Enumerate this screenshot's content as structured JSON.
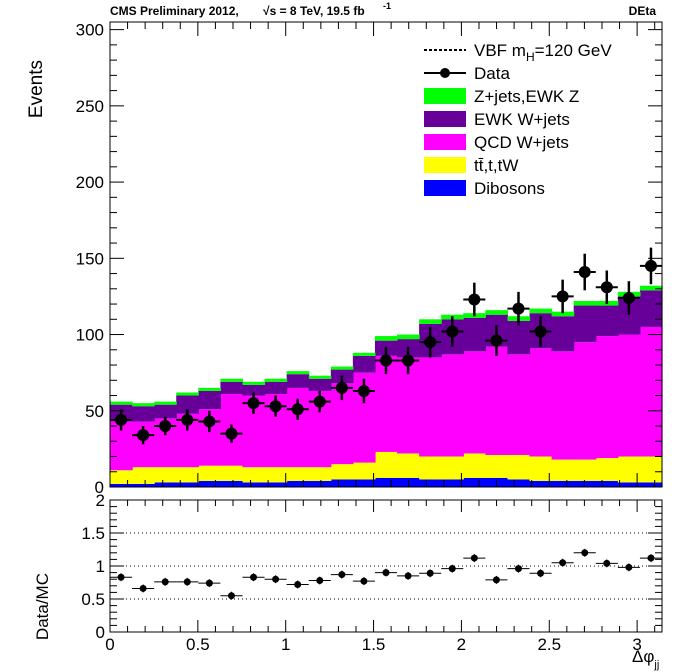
{
  "header": {
    "left_a": "CMS Preliminary 2012,",
    "left_b": "√s = 8 TeV, 19.5 fb",
    "left_sup": "-1",
    "right": "DEta"
  },
  "chart_data": [
    {
      "type": "bar",
      "stacked": true,
      "ylabel": "Events",
      "xlim": [
        0,
        3.1416
      ],
      "ylim": [
        0,
        305
      ],
      "yticks": [
        0,
        50,
        100,
        150,
        200,
        250,
        300
      ],
      "bin_width": 0.1257,
      "bins_x": [
        0.0628,
        0.1885,
        0.3142,
        0.4398,
        0.5655,
        0.6912,
        0.8168,
        0.9425,
        1.0681,
        1.1938,
        1.3195,
        1.4451,
        1.5708,
        1.6965,
        1.8221,
        1.9478,
        2.0735,
        2.1991,
        2.3248,
        2.4504,
        2.5761,
        2.7018,
        2.8274,
        2.9531,
        3.0788
      ],
      "legend": {
        "position": "top-right",
        "entries": [
          {
            "label": "VBF m",
            "sub": "H",
            "rest": "=120 GeV",
            "style": "dashed"
          },
          {
            "label": "Data",
            "style": "marker"
          },
          {
            "label": "Z+jets,EWK Z",
            "style": "fill",
            "color": "#00ff00"
          },
          {
            "label": "EWK W+jets",
            "style": "fill",
            "color": "#660099"
          },
          {
            "label": "QCD W+jets",
            "style": "fill",
            "color": "#ff00ff"
          },
          {
            "label": "tt̄,t,tW",
            "style": "fill",
            "color": "#ffff00"
          },
          {
            "label": "Dibosons",
            "style": "fill",
            "color": "#0000ff"
          }
        ]
      },
      "series": [
        {
          "name": "Dibosons",
          "color": "#0000ff",
          "values": [
            2,
            2,
            3,
            3,
            4,
            4,
            3,
            3,
            4,
            4,
            5,
            5,
            6,
            6,
            5,
            5,
            6,
            6,
            5,
            4,
            4,
            4,
            4,
            3,
            3
          ]
        },
        {
          "name": "tt̄,t,tW",
          "color": "#ffff00",
          "values": [
            9,
            11,
            10,
            10,
            10,
            10,
            10,
            10,
            9,
            9,
            10,
            11,
            17,
            16,
            15,
            15,
            16,
            15,
            16,
            16,
            14,
            14,
            15,
            17,
            17
          ]
        },
        {
          "name": "QCD W+jets",
          "color": "#ff00ff",
          "values": [
            32,
            30,
            32,
            35,
            37,
            47,
            47,
            48,
            52,
            50,
            53,
            59,
            63,
            63,
            65,
            67,
            67,
            71,
            66,
            71,
            71,
            77,
            80,
            80,
            85
          ]
        },
        {
          "name": "EWK W+jets",
          "color": "#660099",
          "values": [
            11,
            10,
            9,
            12,
            12,
            8,
            7,
            8,
            9,
            8,
            9,
            11,
            10,
            12,
            22,
            23,
            22,
            21,
            22,
            23,
            23,
            24,
            20,
            25,
            24
          ]
        },
        {
          "name": "Z+jets,EWK Z",
          "color": "#00ff00",
          "values": [
            2,
            2,
            2,
            2,
            2,
            2,
            2,
            2,
            2,
            2,
            2,
            2,
            3,
            3,
            3,
            3,
            3,
            3,
            3,
            3,
            3,
            3,
            3,
            3,
            3
          ]
        }
      ],
      "data_points": {
        "name": "Data",
        "values": [
          44,
          34,
          40,
          44,
          43,
          35,
          55,
          53,
          51,
          56,
          65,
          63,
          83,
          83,
          95,
          102,
          123,
          96,
          117,
          102,
          125,
          141,
          131,
          124,
          145
        ],
        "errors": [
          7,
          6,
          6,
          7,
          7,
          6,
          7,
          7,
          7,
          7,
          8,
          8,
          9,
          9,
          10,
          10,
          11,
          10,
          11,
          10,
          11,
          12,
          11,
          11,
          12
        ]
      }
    },
    {
      "type": "scatter",
      "ylabel": "Data/MC",
      "xlabel": "Δφ",
      "xlabel_sub": "jj",
      "xlim": [
        0,
        3.1416
      ],
      "ylim": [
        0,
        2
      ],
      "yticks": [
        0,
        0.5,
        1,
        1.5,
        2
      ],
      "yticklabels": [
        "0",
        "0.5",
        "1",
        "1.5",
        "2"
      ],
      "xticks": [
        0,
        0.5,
        1,
        1.5,
        2,
        2.5,
        3
      ],
      "xticklabels": [
        "0",
        "0.5",
        "1",
        "1.5",
        "2",
        "2.5",
        "3"
      ],
      "grid_lines": [
        0.5,
        1,
        1.5
      ],
      "values": [
        0.83,
        0.66,
        0.76,
        0.76,
        0.74,
        0.55,
        0.83,
        0.8,
        0.72,
        0.78,
        0.87,
        0.77,
        0.9,
        0.85,
        0.89,
        0.96,
        1.12,
        0.79,
        0.96,
        0.89,
        1.05,
        1.2,
        1.04,
        0.98,
        1.12
      ],
      "errors": [
        0.06,
        0.06,
        0.06,
        0.06,
        0.06,
        0.06,
        0.06,
        0.06,
        0.06,
        0.06,
        0.06,
        0.06,
        0.06,
        0.06,
        0.06,
        0.06,
        0.06,
        0.06,
        0.06,
        0.06,
        0.06,
        0.06,
        0.06,
        0.06,
        0.06
      ]
    }
  ]
}
